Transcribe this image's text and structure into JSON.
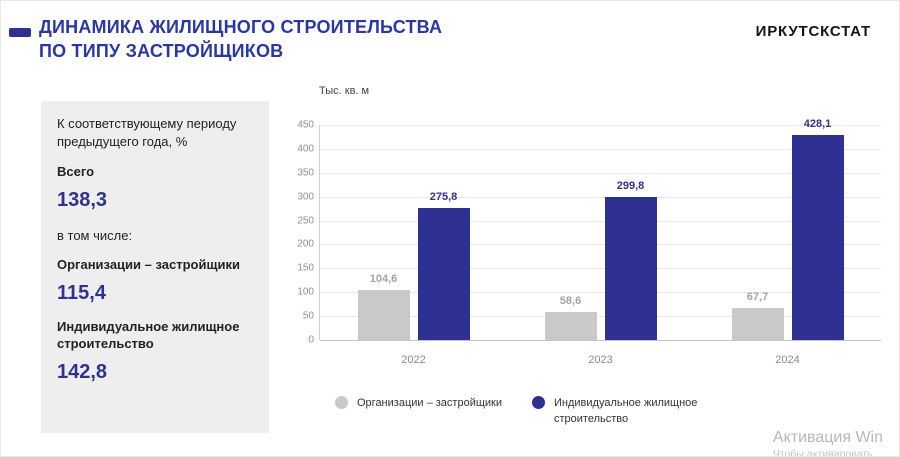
{
  "header": {
    "title_line1": "ДИНАМИКА ЖИЛИЩНОГО СТРОИТЕЛЬСТВА",
    "title_line2": "ПО ТИПУ ЗАСТРОЙЩИКОВ",
    "brand": "ИРКУТСКСТАТ"
  },
  "sidebar": {
    "note": "К соответствующему периоду предыдущего года, %",
    "including": "в том числе:",
    "items": [
      {
        "label": "Всего",
        "value": "138,3"
      },
      {
        "label": "Организации – застройщики",
        "value": "115,4"
      },
      {
        "label": "Индивидуальное жилищное строительство",
        "value": "142,8"
      }
    ]
  },
  "chart_data": {
    "type": "bar",
    "title": "",
    "unit_label": "Тыс. кв. м",
    "categories": [
      "2022",
      "2023",
      "2024"
    ],
    "series": [
      {
        "name": "Организации – застройщики",
        "color": "#c9c9c9",
        "label_color": "#a3a3a3",
        "values": [
          104.6,
          58.6,
          67.7
        ],
        "labels": [
          "104,6",
          "58,6",
          "67,7"
        ]
      },
      {
        "name": "Индивидуальное жилищное строительство",
        "color": "#2e3192",
        "label_color": "#2e3192",
        "values": [
          275.8,
          299.8,
          428.1
        ],
        "labels": [
          "275,8",
          "299,8",
          "428,1"
        ]
      }
    ],
    "ylim": [
      0,
      450
    ],
    "ytick_step": 50,
    "grid": true,
    "legend_position": "bottom"
  },
  "watermark": {
    "line1": "Активация Win",
    "line2": "Чтобы активировать"
  },
  "colors": {
    "title_blue": "#2936a8",
    "accent_blue": "#2e3192",
    "panel_gray": "#eeeeee"
  }
}
